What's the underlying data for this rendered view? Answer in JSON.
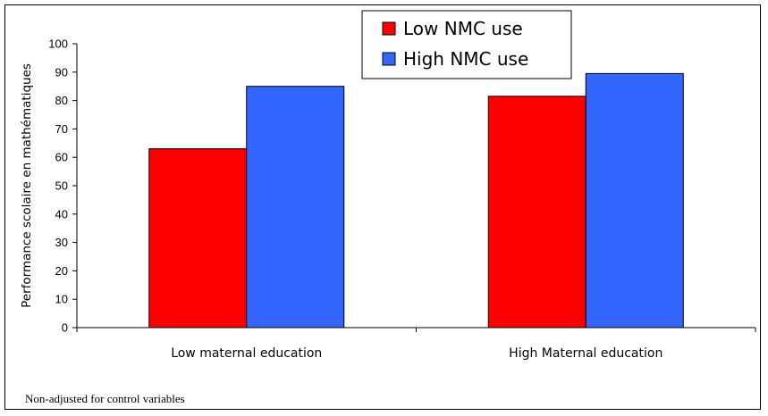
{
  "chart_data": {
    "type": "bar",
    "categories": [
      "Low maternal education",
      "High Maternal education"
    ],
    "series": [
      {
        "name": "Low NMC use",
        "values": [
          63,
          81.5
        ],
        "color": "#ff0000"
      },
      {
        "name": "High NMC use",
        "values": [
          85,
          89.5
        ],
        "color": "#3366ff"
      }
    ],
    "ylabel": "Performance scolaire en mathématiques",
    "ylim": [
      0,
      100
    ],
    "yticks": [
      0,
      10,
      20,
      30,
      40,
      50,
      60,
      70,
      80,
      90,
      100
    ],
    "grid": false,
    "legend_position": "top-center"
  },
  "footnote": "Non-adjusted for control variables"
}
